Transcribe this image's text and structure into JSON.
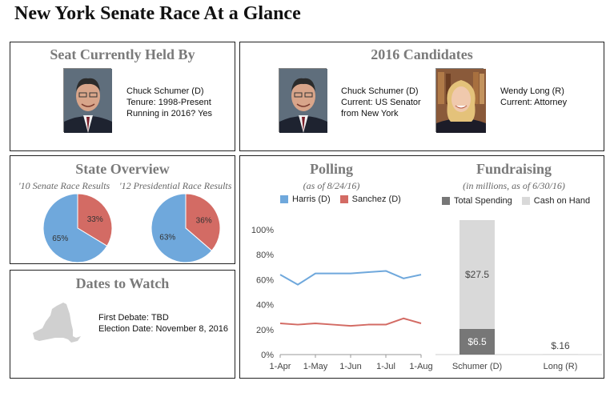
{
  "page": {
    "title": "New York Senate Race At a Glance"
  },
  "seat_held": {
    "title": "Seat Currently Held By",
    "name": "Chuck Schumer (D)",
    "tenure": "Tenure: 1998-Present",
    "running": "Running in 2016? Yes"
  },
  "candidates": {
    "title": "2016 Candidates",
    "items": [
      {
        "name": "Chuck Schumer (D)",
        "line1": "Current: US Senator",
        "line2": "from New York"
      },
      {
        "name": "Wendy Long (R)",
        "line1": "Current: Attorney",
        "line2": ""
      }
    ]
  },
  "state_overview": {
    "title": "State Overview",
    "sub1": "'10 Senate Race Results",
    "sub2": "'12 Presidential Race Results"
  },
  "dates": {
    "title": "Dates to Watch",
    "first_debate": "First Debate: TBD",
    "election_date": "Election Date: November 8, 2016"
  },
  "polling": {
    "title": "Polling",
    "subtitle": "(as of 8/24/16)"
  },
  "fundraising": {
    "title": "Fundraising",
    "subtitle": "(in millions, as of 6/30/16)"
  },
  "colors": {
    "dem": "#6fa8dc",
    "rep": "#d36b64",
    "spending": "#777777",
    "cash": "#d9d9d9",
    "title_gray": "#7a7a7a"
  },
  "chart_data": [
    {
      "type": "pie",
      "title": "'10 Senate Race Results",
      "slices": [
        {
          "value": 65,
          "label": "65%",
          "color": "#6fa8dc"
        },
        {
          "value": 33,
          "label": "33%",
          "color": "#d36b64"
        }
      ]
    },
    {
      "type": "pie",
      "title": "'12 Presidential Race Results",
      "slices": [
        {
          "value": 63,
          "label": "63%",
          "color": "#6fa8dc"
        },
        {
          "value": 36,
          "label": "36%",
          "color": "#d36b64"
        }
      ]
    },
    {
      "type": "line",
      "title": "Polling",
      "subtitle": "(as of 8/24/16)",
      "x": [
        "1-Apr",
        "15-Apr",
        "1-May",
        "15-May",
        "1-Jun",
        "15-Jun",
        "1-Jul",
        "15-Jul",
        "1-Aug"
      ],
      "x_ticks": [
        "1-Apr",
        "1-May",
        "1-Jun",
        "1-Jul",
        "1-Aug"
      ],
      "y_ticks": [
        "0%",
        "20%",
        "40%",
        "60%",
        "80%",
        "100%"
      ],
      "ylim": [
        0,
        100
      ],
      "series": [
        {
          "name": "Harris (D)",
          "color": "#6fa8dc",
          "values": [
            64,
            56,
            65,
            65,
            65,
            66,
            67,
            61,
            64
          ]
        },
        {
          "name": "Sanchez (D)",
          "color": "#d36b64",
          "values": [
            25,
            24,
            25,
            24,
            23,
            24,
            24,
            29,
            25
          ]
        }
      ],
      "legend": "top"
    },
    {
      "type": "bar",
      "title": "Fundraising",
      "subtitle": "(in millions, as of 6/30/16)",
      "categories": [
        "Schumer (D)",
        "Long (R)"
      ],
      "series": [
        {
          "name": "Total Spending",
          "color": "#777777",
          "values": [
            6.5,
            0
          ]
        },
        {
          "name": "Cash on Hand",
          "color": "#d9d9d9",
          "values": [
            27.5,
            0.16
          ]
        }
      ],
      "labels": [
        [
          "$6.5",
          "$27.5"
        ],
        [
          "",
          "$.16"
        ]
      ],
      "stacked": true,
      "ylim": [
        0,
        34
      ]
    }
  ]
}
